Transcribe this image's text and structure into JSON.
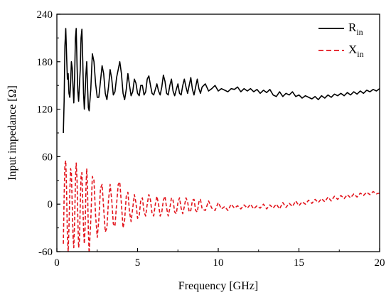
{
  "chart_data": {
    "type": "line",
    "xlabel": "Frequency [GHz]",
    "ylabel": "Input impedance [Ω]",
    "xlim": [
      0,
      20
    ],
    "ylim": [
      -60,
      240
    ],
    "xticks": [
      0,
      5,
      10,
      15,
      20
    ],
    "yticks": [
      -60,
      0,
      60,
      120,
      180,
      240
    ],
    "xtick_labels": [
      "0",
      "5",
      "10",
      "15",
      "20"
    ],
    "ytick_labels": [
      "-60",
      "0",
      "60",
      "120",
      "180",
      "240"
    ],
    "legend_position": "top-right",
    "grid": false,
    "series": [
      {
        "name": "R",
        "name_sub": "in",
        "color": "#000000",
        "dash": "solid",
        "points": [
          [
            0.4,
            90
          ],
          [
            0.45,
            130
          ],
          [
            0.5,
            200
          ],
          [
            0.55,
            222
          ],
          [
            0.6,
            190
          ],
          [
            0.65,
            158
          ],
          [
            0.7,
            165
          ],
          [
            0.75,
            140
          ],
          [
            0.8,
            135
          ],
          [
            0.85,
            152
          ],
          [
            0.9,
            180
          ],
          [
            0.95,
            172
          ],
          [
            1.0,
            148
          ],
          [
            1.05,
            128
          ],
          [
            1.1,
            162
          ],
          [
            1.15,
            210
          ],
          [
            1.2,
            222
          ],
          [
            1.25,
            175
          ],
          [
            1.3,
            142
          ],
          [
            1.35,
            130
          ],
          [
            1.4,
            152
          ],
          [
            1.45,
            170
          ],
          [
            1.5,
            210
          ],
          [
            1.55,
            221
          ],
          [
            1.6,
            185
          ],
          [
            1.65,
            140
          ],
          [
            1.7,
            120
          ],
          [
            1.75,
            140
          ],
          [
            1.8,
            165
          ],
          [
            1.85,
            180
          ],
          [
            1.9,
            150
          ],
          [
            1.95,
            122
          ],
          [
            2.0,
            118
          ],
          [
            2.1,
            145
          ],
          [
            2.2,
            190
          ],
          [
            2.3,
            180
          ],
          [
            2.4,
            152
          ],
          [
            2.5,
            135
          ],
          [
            2.6,
            135
          ],
          [
            2.7,
            155
          ],
          [
            2.8,
            175
          ],
          [
            2.9,
            165
          ],
          [
            3.0,
            140
          ],
          [
            3.1,
            132
          ],
          [
            3.2,
            148
          ],
          [
            3.3,
            170
          ],
          [
            3.4,
            158
          ],
          [
            3.5,
            138
          ],
          [
            3.6,
            142
          ],
          [
            3.7,
            160
          ],
          [
            3.8,
            170
          ],
          [
            3.9,
            180
          ],
          [
            4.0,
            165
          ],
          [
            4.1,
            140
          ],
          [
            4.2,
            132
          ],
          [
            4.3,
            145
          ],
          [
            4.4,
            165
          ],
          [
            4.5,
            150
          ],
          [
            4.6,
            137
          ],
          [
            4.7,
            142
          ],
          [
            4.8,
            158
          ],
          [
            4.9,
            153
          ],
          [
            5.0,
            140
          ],
          [
            5.1,
            137
          ],
          [
            5.2,
            150
          ],
          [
            5.3,
            150
          ],
          [
            5.4,
            138
          ],
          [
            5.5,
            142
          ],
          [
            5.6,
            158
          ],
          [
            5.7,
            162
          ],
          [
            5.8,
            150
          ],
          [
            5.9,
            140
          ],
          [
            6.0,
            138
          ],
          [
            6.1,
            145
          ],
          [
            6.2,
            152
          ],
          [
            6.3,
            143
          ],
          [
            6.4,
            138
          ],
          [
            6.5,
            148
          ],
          [
            6.6,
            163
          ],
          [
            6.7,
            155
          ],
          [
            6.8,
            140
          ],
          [
            6.9,
            138
          ],
          [
            7.0,
            150
          ],
          [
            7.1,
            158
          ],
          [
            7.2,
            143
          ],
          [
            7.3,
            137
          ],
          [
            7.4,
            145
          ],
          [
            7.5,
            152
          ],
          [
            7.6,
            140
          ],
          [
            7.7,
            138
          ],
          [
            7.8,
            150
          ],
          [
            7.9,
            158
          ],
          [
            8.0,
            148
          ],
          [
            8.1,
            140
          ],
          [
            8.2,
            150
          ],
          [
            8.3,
            160
          ],
          [
            8.4,
            145
          ],
          [
            8.5,
            138
          ],
          [
            8.6,
            148
          ],
          [
            8.7,
            158
          ],
          [
            8.8,
            146
          ],
          [
            8.9,
            140
          ],
          [
            9.0,
            148
          ],
          [
            9.2,
            152
          ],
          [
            9.4,
            143
          ],
          [
            9.6,
            146
          ],
          [
            9.8,
            150
          ],
          [
            10.0,
            143
          ],
          [
            10.2,
            146
          ],
          [
            10.4,
            144
          ],
          [
            10.6,
            142
          ],
          [
            10.8,
            146
          ],
          [
            11.0,
            145
          ],
          [
            11.2,
            148
          ],
          [
            11.4,
            142
          ],
          [
            11.6,
            146
          ],
          [
            11.8,
            143
          ],
          [
            12.0,
            146
          ],
          [
            12.2,
            142
          ],
          [
            12.4,
            145
          ],
          [
            12.6,
            140
          ],
          [
            12.8,
            144
          ],
          [
            13.0,
            141
          ],
          [
            13.2,
            145
          ],
          [
            13.4,
            138
          ],
          [
            13.6,
            136
          ],
          [
            13.8,
            142
          ],
          [
            14.0,
            136
          ],
          [
            14.2,
            140
          ],
          [
            14.4,
            138
          ],
          [
            14.6,
            142
          ],
          [
            14.8,
            136
          ],
          [
            15.0,
            138
          ],
          [
            15.2,
            134
          ],
          [
            15.4,
            137
          ],
          [
            15.6,
            135
          ],
          [
            15.8,
            133
          ],
          [
            16.0,
            136
          ],
          [
            16.2,
            132
          ],
          [
            16.4,
            137
          ],
          [
            16.6,
            134
          ],
          [
            16.8,
            138
          ],
          [
            17.0,
            135
          ],
          [
            17.2,
            139
          ],
          [
            17.4,
            137
          ],
          [
            17.6,
            140
          ],
          [
            17.8,
            137
          ],
          [
            18.0,
            141
          ],
          [
            18.2,
            138
          ],
          [
            18.4,
            142
          ],
          [
            18.6,
            139
          ],
          [
            18.8,
            143
          ],
          [
            19.0,
            140
          ],
          [
            19.2,
            144
          ],
          [
            19.4,
            142
          ],
          [
            19.6,
            145
          ],
          [
            19.8,
            143
          ],
          [
            20.0,
            146
          ]
        ]
      },
      {
        "name": "X",
        "name_sub": "in",
        "color": "#e3141c",
        "dash": "dashed",
        "points": [
          [
            0.4,
            -50
          ],
          [
            0.45,
            10
          ],
          [
            0.5,
            50
          ],
          [
            0.55,
            55
          ],
          [
            0.6,
            20
          ],
          [
            0.65,
            -40
          ],
          [
            0.7,
            -60
          ],
          [
            0.75,
            -30
          ],
          [
            0.8,
            15
          ],
          [
            0.85,
            45
          ],
          [
            0.9,
            40
          ],
          [
            0.95,
            0
          ],
          [
            1.0,
            -40
          ],
          [
            1.05,
            -55
          ],
          [
            1.1,
            -20
          ],
          [
            1.15,
            30
          ],
          [
            1.2,
            52
          ],
          [
            1.25,
            30
          ],
          [
            1.3,
            -20
          ],
          [
            1.35,
            -55
          ],
          [
            1.4,
            -45
          ],
          [
            1.45,
            0
          ],
          [
            1.5,
            35
          ],
          [
            1.55,
            40
          ],
          [
            1.6,
            5
          ],
          [
            1.65,
            -30
          ],
          [
            1.7,
            -50
          ],
          [
            1.75,
            -30
          ],
          [
            1.8,
            20
          ],
          [
            1.85,
            45
          ],
          [
            1.9,
            20
          ],
          [
            1.95,
            -35
          ],
          [
            2.0,
            -62
          ],
          [
            2.1,
            -20
          ],
          [
            2.2,
            35
          ],
          [
            2.3,
            30
          ],
          [
            2.4,
            -15
          ],
          [
            2.5,
            -42
          ],
          [
            2.6,
            -20
          ],
          [
            2.7,
            20
          ],
          [
            2.8,
            25
          ],
          [
            2.9,
            -5
          ],
          [
            3.0,
            -35
          ],
          [
            3.1,
            -30
          ],
          [
            3.2,
            5
          ],
          [
            3.3,
            25
          ],
          [
            3.4,
            5
          ],
          [
            3.5,
            -25
          ],
          [
            3.6,
            -28
          ],
          [
            3.7,
            0
          ],
          [
            3.8,
            25
          ],
          [
            3.9,
            28
          ],
          [
            4.0,
            0
          ],
          [
            4.1,
            -30
          ],
          [
            4.2,
            -20
          ],
          [
            4.3,
            10
          ],
          [
            4.4,
            15
          ],
          [
            4.5,
            -10
          ],
          [
            4.6,
            -22
          ],
          [
            4.7,
            -5
          ],
          [
            4.8,
            12
          ],
          [
            4.9,
            2
          ],
          [
            5.0,
            -18
          ],
          [
            5.1,
            -15
          ],
          [
            5.2,
            5
          ],
          [
            5.3,
            8
          ],
          [
            5.4,
            -10
          ],
          [
            5.5,
            -15
          ],
          [
            5.6,
            0
          ],
          [
            5.7,
            12
          ],
          [
            5.8,
            5
          ],
          [
            5.9,
            -12
          ],
          [
            6.0,
            -15
          ],
          [
            6.1,
            0
          ],
          [
            6.2,
            10
          ],
          [
            6.3,
            0
          ],
          [
            6.4,
            -15
          ],
          [
            6.5,
            -10
          ],
          [
            6.6,
            5
          ],
          [
            6.7,
            10
          ],
          [
            6.8,
            -5
          ],
          [
            6.9,
            -15
          ],
          [
            7.0,
            -5
          ],
          [
            7.1,
            8
          ],
          [
            7.2,
            5
          ],
          [
            7.3,
            -10
          ],
          [
            7.4,
            -12
          ],
          [
            7.5,
            2
          ],
          [
            7.6,
            8
          ],
          [
            7.7,
            -5
          ],
          [
            7.8,
            -12
          ],
          [
            7.9,
            -3
          ],
          [
            8.0,
            8
          ],
          [
            8.1,
            3
          ],
          [
            8.2,
            -10
          ],
          [
            8.3,
            -8
          ],
          [
            8.4,
            5
          ],
          [
            8.5,
            6
          ],
          [
            8.6,
            -8
          ],
          [
            8.7,
            -10
          ],
          [
            8.8,
            3
          ],
          [
            8.9,
            6
          ],
          [
            9.0,
            -6
          ],
          [
            9.2,
            -8
          ],
          [
            9.4,
            4
          ],
          [
            9.6,
            -5
          ],
          [
            9.8,
            -8
          ],
          [
            10.0,
            2
          ],
          [
            10.2,
            -6
          ],
          [
            10.4,
            -3
          ],
          [
            10.6,
            -8
          ],
          [
            10.8,
            0
          ],
          [
            11.0,
            -5
          ],
          [
            11.2,
            -2
          ],
          [
            11.4,
            -6
          ],
          [
            11.6,
            -1
          ],
          [
            11.8,
            -5
          ],
          [
            12.0,
            0
          ],
          [
            12.2,
            -6
          ],
          [
            12.4,
            -2
          ],
          [
            12.6,
            -5
          ],
          [
            12.8,
            0
          ],
          [
            13.0,
            -6
          ],
          [
            13.2,
            -1
          ],
          [
            13.4,
            -5
          ],
          [
            13.6,
            0
          ],
          [
            13.8,
            -6
          ],
          [
            14.0,
            2
          ],
          [
            14.2,
            -4
          ],
          [
            14.4,
            1
          ],
          [
            14.6,
            -3
          ],
          [
            14.8,
            4
          ],
          [
            15.0,
            -2
          ],
          [
            15.2,
            3
          ],
          [
            15.4,
            0
          ],
          [
            15.6,
            5
          ],
          [
            15.8,
            1
          ],
          [
            16.0,
            6
          ],
          [
            16.2,
            2
          ],
          [
            16.4,
            7
          ],
          [
            16.6,
            3
          ],
          [
            16.8,
            9
          ],
          [
            17.0,
            4
          ],
          [
            17.2,
            10
          ],
          [
            17.4,
            6
          ],
          [
            17.6,
            11
          ],
          [
            17.8,
            7
          ],
          [
            18.0,
            12
          ],
          [
            18.2,
            8
          ],
          [
            18.4,
            13
          ],
          [
            18.6,
            9
          ],
          [
            18.8,
            14
          ],
          [
            19.0,
            11
          ],
          [
            19.2,
            15
          ],
          [
            19.4,
            12
          ],
          [
            19.6,
            16
          ],
          [
            19.8,
            13
          ],
          [
            20.0,
            14
          ]
        ]
      }
    ]
  }
}
